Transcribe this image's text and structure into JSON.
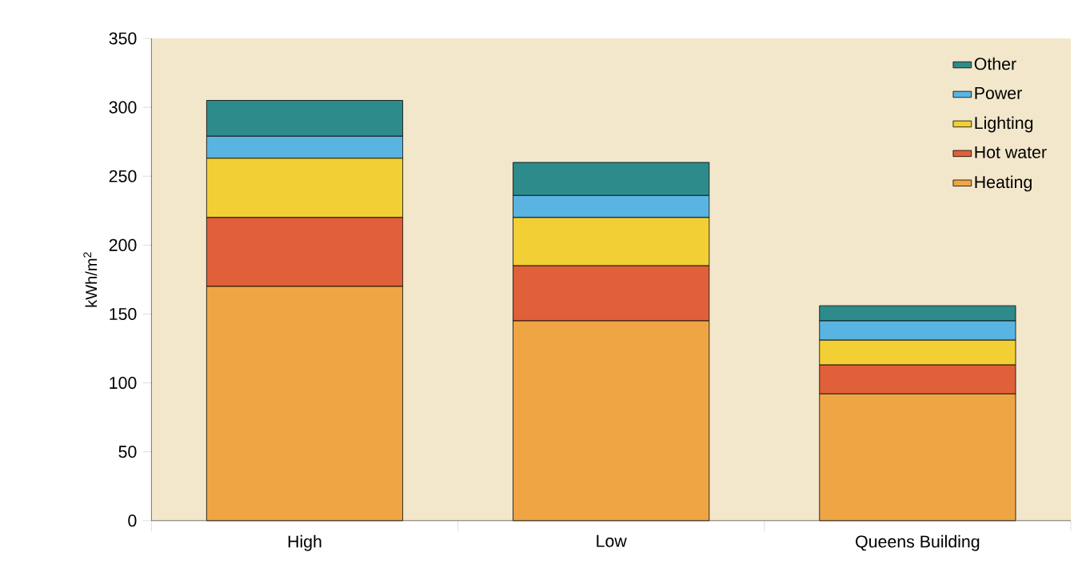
{
  "chart_data": {
    "type": "bar",
    "stacked": true,
    "ylabel": "kWh/m$^{2}$",
    "categories": [
      "High",
      "Low",
      "Queens Building"
    ],
    "series": [
      {
        "name": "Heating",
        "color": "#f0a545",
        "values": [
          170,
          145,
          92
        ]
      },
      {
        "name": "Hot water",
        "color": "#e0603a",
        "values": [
          50,
          40,
          21
        ]
      },
      {
        "name": "Lighting",
        "color": "#f2cf35",
        "values": [
          43,
          35,
          18
        ]
      },
      {
        "name": "Power",
        "color": "#5ab4e2",
        "values": [
          16,
          16,
          14
        ]
      },
      {
        "name": "Other",
        "color": "#2e8b8c",
        "values": [
          26,
          24,
          11
        ]
      }
    ],
    "ylim": [
      0,
      350
    ],
    "yticks": [
      0,
      50,
      100,
      150,
      200,
      250,
      300,
      350
    ],
    "legend": "top right"
  }
}
